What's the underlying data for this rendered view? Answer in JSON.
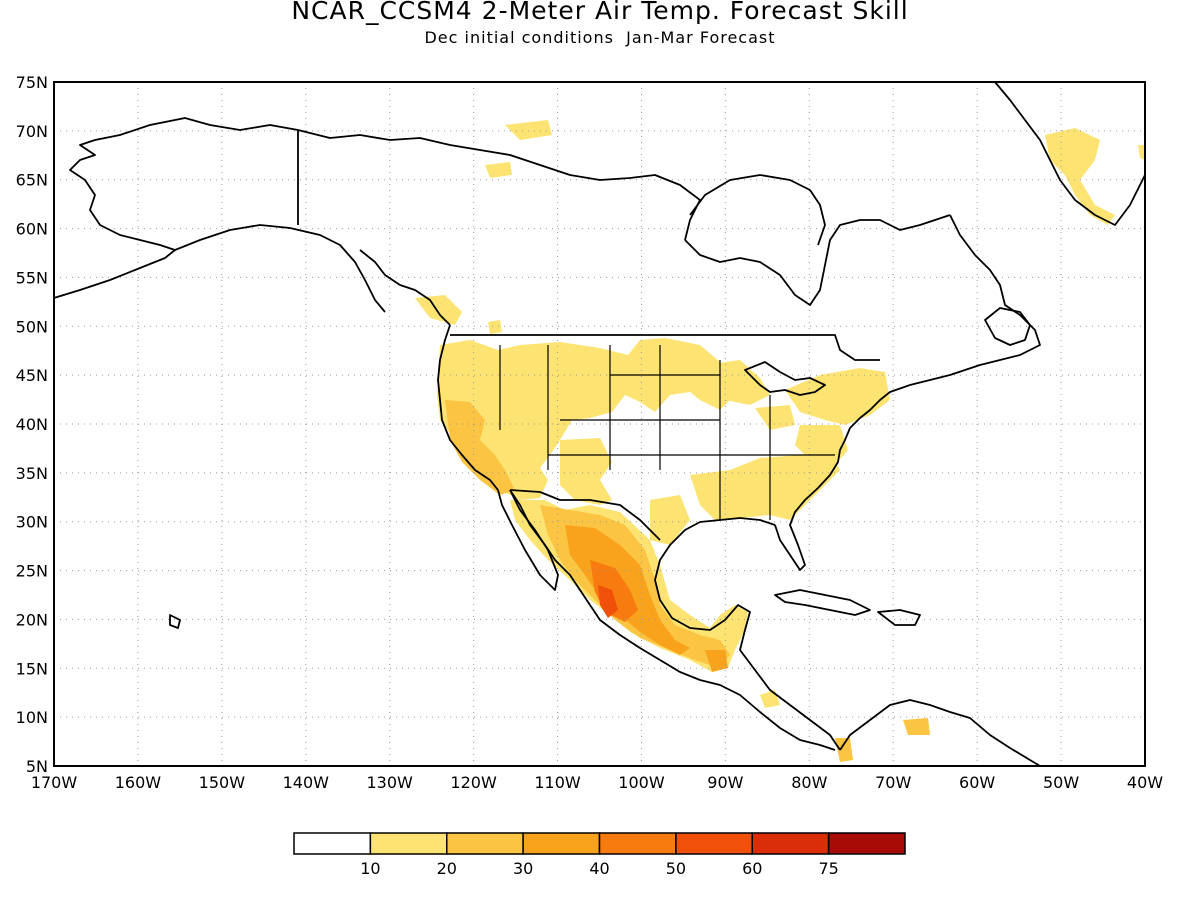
{
  "title": "NCAR_CCSM4 2-Meter Air Temp. Forecast Skill",
  "subtitle": "Dec initial conditions  Jan-Mar Forecast",
  "map": {
    "lat_labels": [
      "75N",
      "70N",
      "65N",
      "60N",
      "55N",
      "50N",
      "45N",
      "40N",
      "35N",
      "30N",
      "25N",
      "20N",
      "15N",
      "10N",
      "5N"
    ],
    "lon_labels": [
      "170W",
      "160W",
      "150W",
      "140W",
      "130W",
      "120W",
      "110W",
      "100W",
      "90W",
      "80W",
      "70W",
      "60W",
      "50W",
      "40W"
    ],
    "lat_range": [
      5,
      75
    ],
    "lon_range": [
      -170,
      -40
    ],
    "grid": "dotted",
    "coastline_color": "#000000"
  },
  "colorbar": {
    "labels": [
      "10",
      "20",
      "30",
      "40",
      "50",
      "60",
      "75"
    ],
    "colors": [
      "#ffffff",
      "#fde472",
      "#fbc443",
      "#f9a21c",
      "#f77b0e",
      "#f1500a",
      "#d92e08",
      "#a80a05"
    ]
  }
}
